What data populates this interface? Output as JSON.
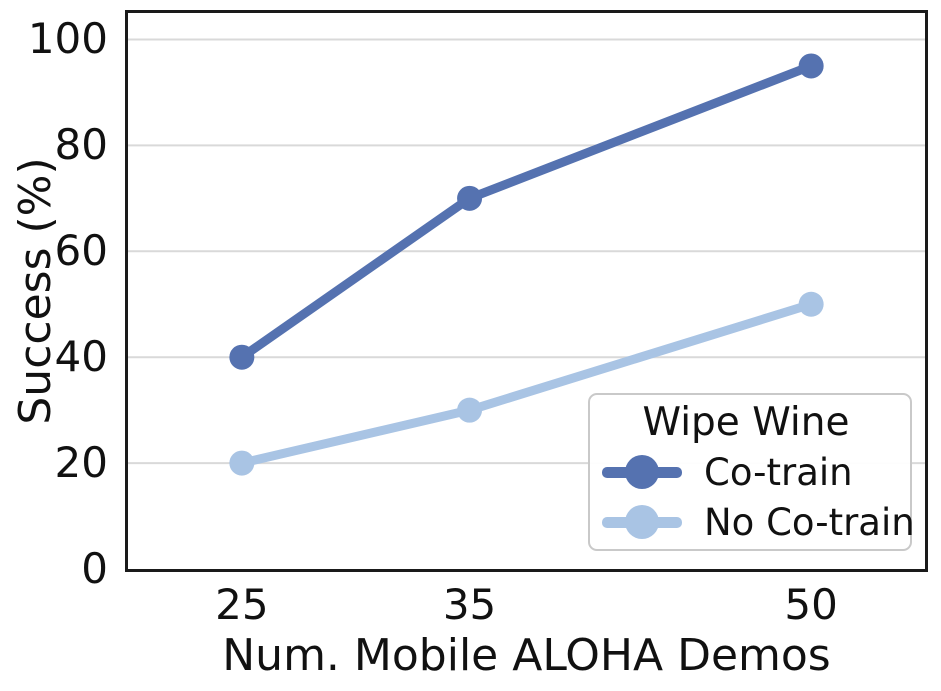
{
  "colors": {
    "grid": "#d9d9d9",
    "spine": "#1a1a1a",
    "text": "#111111",
    "legend_border": "#c9c9c9"
  },
  "chart_data": {
    "type": "line",
    "title": "",
    "xlabel": "Num. Mobile ALOHA Demos",
    "ylabel": "Success (%)",
    "x": [
      25,
      35,
      50
    ],
    "x_ticks": [
      "25",
      "35",
      "50"
    ],
    "y_ticks": [
      0,
      20,
      40,
      60,
      80,
      100
    ],
    "xlim": [
      20,
      55
    ],
    "ylim": [
      0,
      105
    ],
    "grid": "horizontal-only",
    "legend": {
      "title": "Wipe Wine",
      "position": "lower right"
    },
    "series": [
      {
        "name": "Co-train",
        "values": [
          40,
          70,
          95
        ],
        "color": "#5572b0"
      },
      {
        "name": "No Co-train",
        "values": [
          20,
          30,
          50
        ],
        "color": "#a9c4e4"
      }
    ]
  }
}
